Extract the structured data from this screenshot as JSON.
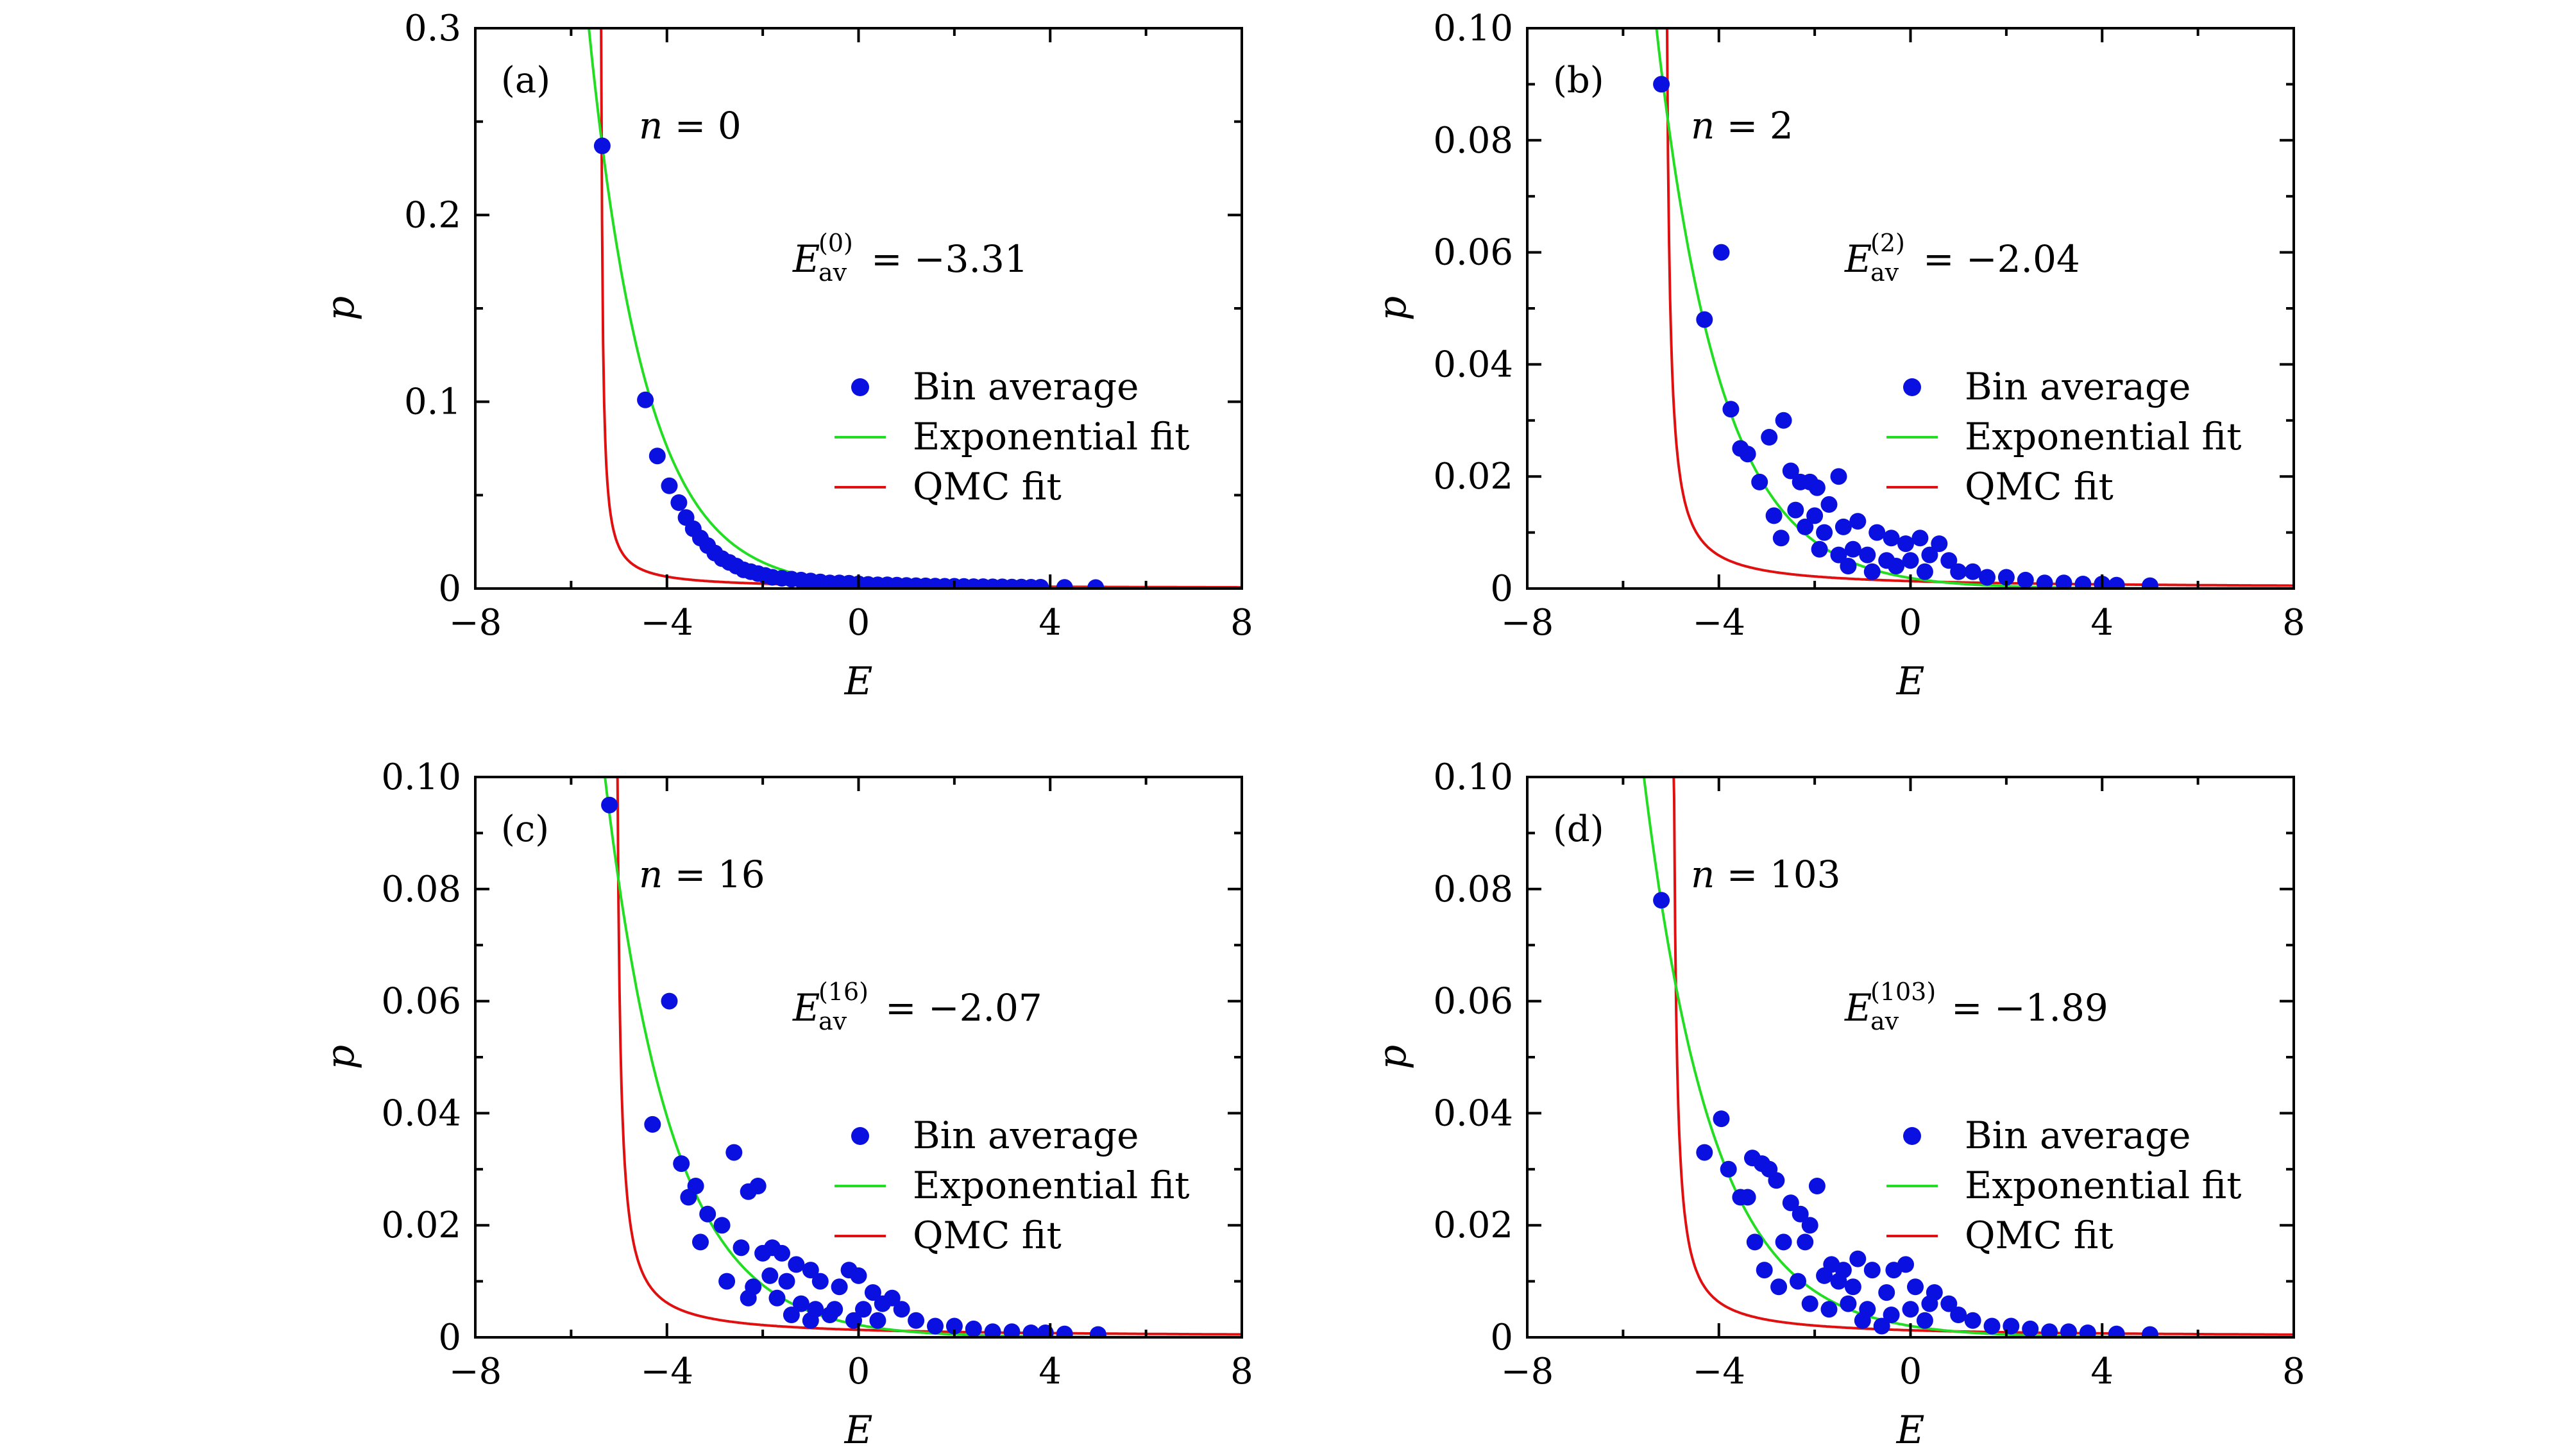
{
  "colors": {
    "points": "#0a10e0",
    "exponential": "#22dd22",
    "qmc": "#e01010"
  },
  "chart_data": [
    {
      "type": "scatter",
      "panel_label": "(a)",
      "n_label_var": "n",
      "n_label_val": "= 0",
      "eav_var": "E",
      "eav_sub": "av",
      "eav_sup": "(0)",
      "eav_val": "= −3.31",
      "xlabel": "E",
      "ylabel": "p",
      "xlim": [
        -8,
        8
      ],
      "ylim": [
        0,
        0.3
      ],
      "xticks": [
        -8,
        -4,
        0,
        4,
        8
      ],
      "xtick_labels": [
        "−8",
        "−4",
        "0",
        "4",
        "8"
      ],
      "yticks": [
        0,
        0.1,
        0.2,
        0.3
      ],
      "ytick_labels": [
        "0",
        "0.1",
        "0.2",
        "0.3"
      ],
      "legend": [
        "Bin average",
        "Exponential fit",
        "QMC fit"
      ],
      "legend_position": "center-right",
      "points": [
        [
          -5.35,
          0.237
        ],
        [
          -4.45,
          0.101
        ],
        [
          -4.2,
          0.071
        ],
        [
          -3.95,
          0.055
        ],
        [
          -3.75,
          0.046
        ],
        [
          -3.6,
          0.038
        ],
        [
          -3.45,
          0.032
        ],
        [
          -3.3,
          0.027
        ],
        [
          -3.15,
          0.023
        ],
        [
          -3.0,
          0.019
        ],
        [
          -2.85,
          0.016
        ],
        [
          -2.7,
          0.014
        ],
        [
          -2.55,
          0.012
        ],
        [
          -2.4,
          0.01
        ],
        [
          -2.25,
          0.009
        ],
        [
          -2.1,
          0.008
        ],
        [
          -1.95,
          0.007
        ],
        [
          -1.8,
          0.006
        ],
        [
          -1.6,
          0.0055
        ],
        [
          -1.4,
          0.005
        ],
        [
          -1.2,
          0.0045
        ],
        [
          -1.0,
          0.004
        ],
        [
          -0.8,
          0.0035
        ],
        [
          -0.6,
          0.003
        ],
        [
          -0.4,
          0.003
        ],
        [
          -0.2,
          0.0028
        ],
        [
          0.0,
          0.0025
        ],
        [
          0.2,
          0.0022
        ],
        [
          0.4,
          0.002
        ],
        [
          0.6,
          0.002
        ],
        [
          0.8,
          0.0018
        ],
        [
          1.0,
          0.0016
        ],
        [
          1.2,
          0.0015
        ],
        [
          1.4,
          0.0014
        ],
        [
          1.6,
          0.0013
        ],
        [
          1.8,
          0.0012
        ],
        [
          2.0,
          0.0012
        ],
        [
          2.2,
          0.0011
        ],
        [
          2.4,
          0.001
        ],
        [
          2.6,
          0.001
        ],
        [
          2.8,
          0.0009
        ],
        [
          3.0,
          0.0009
        ],
        [
          3.2,
          0.0008
        ],
        [
          3.4,
          0.0008
        ],
        [
          3.6,
          0.0007
        ],
        [
          3.8,
          0.0007
        ],
        [
          4.3,
          0.0006
        ],
        [
          4.95,
          0.0005
        ]
      ],
      "fit_exp": {
        "A": 0.237,
        "x0": -5.35,
        "k": 0.843
      },
      "fit_qmc": {
        "C": 0.0089,
        "x0": -5.4,
        "offset": 0
      }
    },
    {
      "type": "scatter",
      "panel_label": "(b)",
      "n_label_var": "n",
      "n_label_val": "= 2",
      "eav_var": "E",
      "eav_sub": "av",
      "eav_sup": "(2)",
      "eav_val": "= −2.04",
      "xlabel": "E",
      "ylabel": "p",
      "xlim": [
        -8,
        8
      ],
      "ylim": [
        0,
        0.1
      ],
      "xticks": [
        -8,
        -4,
        0,
        4,
        8
      ],
      "xtick_labels": [
        "−8",
        "−4",
        "0",
        "4",
        "8"
      ],
      "yticks": [
        0,
        0.02,
        0.04,
        0.06,
        0.08,
        0.1
      ],
      "ytick_labels": [
        "0",
        "0.02",
        "0.04",
        "0.06",
        "0.08",
        "0.10"
      ],
      "legend": [
        "Bin average",
        "Exponential fit",
        "QMC fit"
      ],
      "legend_position": "center-right",
      "points": [
        [
          -5.2,
          0.09
        ],
        [
          -3.95,
          0.06
        ],
        [
          -4.3,
          0.048
        ],
        [
          -3.75,
          0.032
        ],
        [
          -3.55,
          0.025
        ],
        [
          -3.4,
          0.024
        ],
        [
          -2.95,
          0.027
        ],
        [
          -2.65,
          0.03
        ],
        [
          -3.15,
          0.019
        ],
        [
          -2.5,
          0.021
        ],
        [
          -2.3,
          0.019
        ],
        [
          -2.1,
          0.019
        ],
        [
          -1.95,
          0.018
        ],
        [
          -1.5,
          0.02
        ],
        [
          -2.85,
          0.013
        ],
        [
          -2.4,
          0.014
        ],
        [
          -2.0,
          0.013
        ],
        [
          -1.7,
          0.015
        ],
        [
          -2.7,
          0.009
        ],
        [
          -2.2,
          0.011
        ],
        [
          -1.8,
          0.01
        ],
        [
          -1.4,
          0.011
        ],
        [
          -1.1,
          0.012
        ],
        [
          -0.7,
          0.01
        ],
        [
          -0.4,
          0.009
        ],
        [
          -0.1,
          0.008
        ],
        [
          0.2,
          0.009
        ],
        [
          0.6,
          0.008
        ],
        [
          -1.9,
          0.007
        ],
        [
          -1.5,
          0.006
        ],
        [
          -1.2,
          0.007
        ],
        [
          -0.9,
          0.006
        ],
        [
          -0.5,
          0.005
        ],
        [
          0.0,
          0.005
        ],
        [
          0.4,
          0.006
        ],
        [
          0.8,
          0.005
        ],
        [
          -1.3,
          0.004
        ],
        [
          -0.8,
          0.003
        ],
        [
          -0.3,
          0.004
        ],
        [
          0.3,
          0.003
        ],
        [
          1.0,
          0.003
        ],
        [
          1.3,
          0.003
        ],
        [
          1.6,
          0.002
        ],
        [
          2.0,
          0.002
        ],
        [
          2.4,
          0.0015
        ],
        [
          2.8,
          0.001
        ],
        [
          3.2,
          0.001
        ],
        [
          3.6,
          0.0008
        ],
        [
          4.0,
          0.0008
        ],
        [
          4.3,
          0.0006
        ],
        [
          5.0,
          0.0005
        ]
      ],
      "fit_exp": {
        "A": 0.0925,
        "x0": -5.2,
        "k": 0.75
      },
      "fit_qmc": {
        "C": 0.0068,
        "x0": -5.15,
        "offset": 0
      }
    },
    {
      "type": "scatter",
      "panel_label": "(c)",
      "n_label_var": "n",
      "n_label_val": "= 16",
      "eav_var": "E",
      "eav_sub": "av",
      "eav_sup": "(16)",
      "eav_val": "= −2.07",
      "xlabel": "E",
      "ylabel": "p",
      "xlim": [
        -8,
        8
      ],
      "ylim": [
        0,
        0.1
      ],
      "xticks": [
        -8,
        -4,
        0,
        4,
        8
      ],
      "xtick_labels": [
        "−8",
        "−4",
        "0",
        "4",
        "8"
      ],
      "yticks": [
        0,
        0.02,
        0.04,
        0.06,
        0.08,
        0.1
      ],
      "ytick_labels": [
        "0",
        "0.02",
        "0.04",
        "0.06",
        "0.08",
        "0.10"
      ],
      "legend": [
        "Bin average",
        "Exponential fit",
        "QMC fit"
      ],
      "legend_position": "center-right",
      "points": [
        [
          -5.2,
          0.095
        ],
        [
          -3.95,
          0.06
        ],
        [
          -4.3,
          0.038
        ],
        [
          -3.7,
          0.031
        ],
        [
          -3.4,
          0.027
        ],
        [
          -2.6,
          0.033
        ],
        [
          -3.55,
          0.025
        ],
        [
          -2.3,
          0.026
        ],
        [
          -2.1,
          0.027
        ],
        [
          -3.15,
          0.022
        ],
        [
          -2.85,
          0.02
        ],
        [
          -2.45,
          0.016
        ],
        [
          -2.0,
          0.015
        ],
        [
          -1.6,
          0.015
        ],
        [
          -3.3,
          0.017
        ],
        [
          -1.8,
          0.016
        ],
        [
          -1.3,
          0.013
        ],
        [
          -1.0,
          0.012
        ],
        [
          -0.2,
          0.012
        ],
        [
          -2.75,
          0.01
        ],
        [
          -2.2,
          0.009
        ],
        [
          -1.85,
          0.011
        ],
        [
          -1.5,
          0.01
        ],
        [
          -0.8,
          0.01
        ],
        [
          -0.4,
          0.009
        ],
        [
          0.0,
          0.011
        ],
        [
          0.3,
          0.008
        ],
        [
          0.7,
          0.007
        ],
        [
          -2.3,
          0.007
        ],
        [
          -1.7,
          0.007
        ],
        [
          -1.2,
          0.006
        ],
        [
          -0.9,
          0.005
        ],
        [
          -0.5,
          0.005
        ],
        [
          0.1,
          0.005
        ],
        [
          0.5,
          0.006
        ],
        [
          0.9,
          0.005
        ],
        [
          -1.4,
          0.004
        ],
        [
          -1.0,
          0.003
        ],
        [
          -0.6,
          0.004
        ],
        [
          -0.1,
          0.003
        ],
        [
          0.4,
          0.003
        ],
        [
          1.2,
          0.003
        ],
        [
          1.6,
          0.002
        ],
        [
          2.0,
          0.002
        ],
        [
          2.4,
          0.0015
        ],
        [
          2.8,
          0.001
        ],
        [
          3.2,
          0.001
        ],
        [
          3.6,
          0.0008
        ],
        [
          3.9,
          0.0008
        ],
        [
          4.3,
          0.0006
        ],
        [
          5.0,
          0.0005
        ]
      ],
      "fit_exp": {
        "A": 0.0935,
        "x0": -5.2,
        "k": 0.72
      },
      "fit_qmc": {
        "C": 0.0068,
        "x0": -5.1,
        "offset": 0
      }
    },
    {
      "type": "scatter",
      "panel_label": "(d)",
      "n_label_var": "n",
      "n_label_val": "= 103",
      "eav_var": "E",
      "eav_sub": "av",
      "eav_sup": "(103)",
      "eav_val": "= −1.89",
      "xlabel": "E",
      "ylabel": "p",
      "xlim": [
        -8,
        8
      ],
      "ylim": [
        0,
        0.1
      ],
      "xticks": [
        -8,
        -4,
        0,
        4,
        8
      ],
      "xtick_labels": [
        "−8",
        "−4",
        "0",
        "4",
        "8"
      ],
      "yticks": [
        0,
        0.02,
        0.04,
        0.06,
        0.08,
        0.1
      ],
      "ytick_labels": [
        "0",
        "0.02",
        "0.04",
        "0.06",
        "0.08",
        "0.10"
      ],
      "legend": [
        "Bin average",
        "Exponential fit",
        "QMC fit"
      ],
      "legend_position": "center-right",
      "points": [
        [
          -5.2,
          0.078
        ],
        [
          -3.95,
          0.039
        ],
        [
          -4.3,
          0.033
        ],
        [
          -3.8,
          0.03
        ],
        [
          -3.3,
          0.032
        ],
        [
          -3.1,
          0.031
        ],
        [
          -2.95,
          0.03
        ],
        [
          -2.8,
          0.028
        ],
        [
          -3.55,
          0.025
        ],
        [
          -3.4,
          0.025
        ],
        [
          -2.5,
          0.024
        ],
        [
          -2.3,
          0.022
        ],
        [
          -2.1,
          0.02
        ],
        [
          -1.95,
          0.027
        ],
        [
          -3.25,
          0.017
        ],
        [
          -2.65,
          0.017
        ],
        [
          -2.2,
          0.017
        ],
        [
          -1.65,
          0.013
        ],
        [
          -1.4,
          0.012
        ],
        [
          -1.1,
          0.014
        ],
        [
          -0.8,
          0.012
        ],
        [
          -0.35,
          0.012
        ],
        [
          -0.1,
          0.013
        ],
        [
          -3.05,
          0.012
        ],
        [
          -2.75,
          0.009
        ],
        [
          -2.35,
          0.01
        ],
        [
          -1.8,
          0.011
        ],
        [
          -1.5,
          0.01
        ],
        [
          -1.2,
          0.009
        ],
        [
          -0.5,
          0.008
        ],
        [
          0.1,
          0.009
        ],
        [
          0.5,
          0.008
        ],
        [
          -2.1,
          0.006
        ],
        [
          -1.7,
          0.005
        ],
        [
          -1.3,
          0.006
        ],
        [
          -0.9,
          0.005
        ],
        [
          -0.4,
          0.004
        ],
        [
          0.0,
          0.005
        ],
        [
          0.4,
          0.006
        ],
        [
          0.8,
          0.006
        ],
        [
          1.0,
          0.004
        ],
        [
          -1.0,
          0.003
        ],
        [
          -0.6,
          0.002
        ],
        [
          0.3,
          0.003
        ],
        [
          1.3,
          0.003
        ],
        [
          1.7,
          0.002
        ],
        [
          2.1,
          0.002
        ],
        [
          2.5,
          0.0015
        ],
        [
          2.9,
          0.001
        ],
        [
          3.3,
          0.001
        ],
        [
          3.7,
          0.0008
        ],
        [
          4.3,
          0.0006
        ],
        [
          5.0,
          0.0005
        ]
      ],
      "fit_exp": {
        "A": 0.0775,
        "x0": -5.2,
        "k": 0.7
      },
      "fit_qmc": {
        "C": 0.0063,
        "x0": -5.0,
        "offset": 0
      }
    }
  ]
}
